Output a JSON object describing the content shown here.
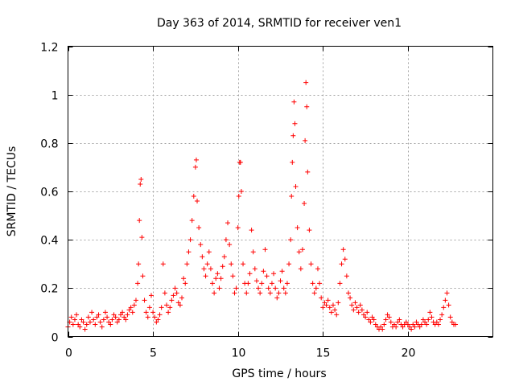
{
  "chart_data": {
    "type": "scatter",
    "title": "Day 363 of 2014, SRMTID for receiver ven1",
    "xlabel": "GPS time / hours",
    "ylabel": "SRMTID / TECUs",
    "xlim": [
      0,
      25
    ],
    "ylim": [
      0,
      1.2
    ],
    "x_ticks": [
      0,
      5,
      10,
      15,
      20
    ],
    "x_tick_labels": [
      "0",
      "5",
      "10",
      "15",
      "20"
    ],
    "y_ticks": [
      0,
      0.2,
      0.4,
      0.6,
      0.8,
      1.0,
      1.2
    ],
    "y_tick_labels": [
      "0",
      "0.2",
      "0.4",
      "0.6",
      "0.8",
      "1",
      "1.2"
    ],
    "grid": true,
    "marker": "+",
    "series": [
      {
        "name": "SRMTID",
        "color": "#ff0000",
        "points": [
          [
            0.0,
            0.04
          ],
          [
            0.1,
            0.06
          ],
          [
            0.2,
            0.08
          ],
          [
            0.3,
            0.05
          ],
          [
            0.4,
            0.07
          ],
          [
            0.5,
            0.09
          ],
          [
            0.6,
            0.05
          ],
          [
            0.7,
            0.04
          ],
          [
            0.8,
            0.07
          ],
          [
            0.9,
            0.06
          ],
          [
            1.0,
            0.03
          ],
          [
            1.1,
            0.05
          ],
          [
            1.2,
            0.08
          ],
          [
            1.3,
            0.06
          ],
          [
            1.4,
            0.1
          ],
          [
            1.5,
            0.07
          ],
          [
            1.6,
            0.05
          ],
          [
            1.7,
            0.08
          ],
          [
            1.8,
            0.09
          ],
          [
            1.9,
            0.06
          ],
          [
            2.0,
            0.04
          ],
          [
            2.1,
            0.07
          ],
          [
            2.2,
            0.1
          ],
          [
            2.3,
            0.08
          ],
          [
            2.4,
            0.06
          ],
          [
            2.5,
            0.05
          ],
          [
            2.6,
            0.07
          ],
          [
            2.7,
            0.09
          ],
          [
            2.8,
            0.08
          ],
          [
            2.9,
            0.06
          ],
          [
            3.0,
            0.07
          ],
          [
            3.1,
            0.09
          ],
          [
            3.2,
            0.1
          ],
          [
            3.3,
            0.08
          ],
          [
            3.4,
            0.07
          ],
          [
            3.5,
            0.09
          ],
          [
            3.6,
            0.11
          ],
          [
            3.7,
            0.12
          ],
          [
            3.8,
            0.1
          ],
          [
            3.9,
            0.13
          ],
          [
            4.0,
            0.15
          ],
          [
            4.1,
            0.22
          ],
          [
            4.15,
            0.3
          ],
          [
            4.2,
            0.48
          ],
          [
            4.25,
            0.63
          ],
          [
            4.3,
            0.65
          ],
          [
            4.35,
            0.41
          ],
          [
            4.4,
            0.25
          ],
          [
            4.5,
            0.15
          ],
          [
            4.6,
            0.1
          ],
          [
            4.7,
            0.08
          ],
          [
            4.8,
            0.12
          ],
          [
            4.9,
            0.17
          ],
          [
            5.0,
            0.1
          ],
          [
            5.1,
            0.08
          ],
          [
            5.2,
            0.06
          ],
          [
            5.3,
            0.07
          ],
          [
            5.4,
            0.09
          ],
          [
            5.5,
            0.12
          ],
          [
            5.6,
            0.3
          ],
          [
            5.7,
            0.18
          ],
          [
            5.8,
            0.13
          ],
          [
            5.9,
            0.1
          ],
          [
            6.0,
            0.12
          ],
          [
            6.1,
            0.15
          ],
          [
            6.2,
            0.17
          ],
          [
            6.3,
            0.2
          ],
          [
            6.4,
            0.18
          ],
          [
            6.5,
            0.14
          ],
          [
            6.6,
            0.13
          ],
          [
            6.7,
            0.16
          ],
          [
            6.8,
            0.24
          ],
          [
            6.9,
            0.22
          ],
          [
            7.0,
            0.3
          ],
          [
            7.1,
            0.35
          ],
          [
            7.2,
            0.4
          ],
          [
            7.3,
            0.48
          ],
          [
            7.4,
            0.58
          ],
          [
            7.5,
            0.7
          ],
          [
            7.55,
            0.73
          ],
          [
            7.6,
            0.56
          ],
          [
            7.7,
            0.45
          ],
          [
            7.8,
            0.38
          ],
          [
            7.9,
            0.33
          ],
          [
            8.0,
            0.28
          ],
          [
            8.1,
            0.25
          ],
          [
            8.2,
            0.3
          ],
          [
            8.3,
            0.35
          ],
          [
            8.4,
            0.28
          ],
          [
            8.5,
            0.22
          ],
          [
            8.6,
            0.18
          ],
          [
            8.7,
            0.24
          ],
          [
            8.8,
            0.26
          ],
          [
            8.9,
            0.2
          ],
          [
            9.0,
            0.24
          ],
          [
            9.1,
            0.29
          ],
          [
            9.2,
            0.33
          ],
          [
            9.3,
            0.4
          ],
          [
            9.4,
            0.47
          ],
          [
            9.5,
            0.38
          ],
          [
            9.6,
            0.3
          ],
          [
            9.7,
            0.25
          ],
          [
            9.8,
            0.18
          ],
          [
            9.9,
            0.2
          ],
          [
            10.0,
            0.45
          ],
          [
            10.05,
            0.58
          ],
          [
            10.1,
            0.72
          ],
          [
            10.15,
            0.72
          ],
          [
            10.2,
            0.6
          ],
          [
            10.3,
            0.3
          ],
          [
            10.4,
            0.22
          ],
          [
            10.5,
            0.18
          ],
          [
            10.6,
            0.22
          ],
          [
            10.7,
            0.26
          ],
          [
            10.8,
            0.44
          ],
          [
            10.9,
            0.35
          ],
          [
            11.0,
            0.28
          ],
          [
            11.1,
            0.23
          ],
          [
            11.2,
            0.2
          ],
          [
            11.3,
            0.18
          ],
          [
            11.4,
            0.22
          ],
          [
            11.5,
            0.27
          ],
          [
            11.6,
            0.36
          ],
          [
            11.7,
            0.25
          ],
          [
            11.8,
            0.2
          ],
          [
            11.9,
            0.18
          ],
          [
            12.0,
            0.22
          ],
          [
            12.1,
            0.26
          ],
          [
            12.2,
            0.2
          ],
          [
            12.3,
            0.16
          ],
          [
            12.4,
            0.18
          ],
          [
            12.5,
            0.23
          ],
          [
            12.6,
            0.27
          ],
          [
            12.7,
            0.2
          ],
          [
            12.8,
            0.18
          ],
          [
            12.9,
            0.22
          ],
          [
            13.0,
            0.3
          ],
          [
            13.1,
            0.4
          ],
          [
            13.15,
            0.58
          ],
          [
            13.2,
            0.72
          ],
          [
            13.25,
            0.83
          ],
          [
            13.3,
            0.97
          ],
          [
            13.35,
            0.88
          ],
          [
            13.4,
            0.62
          ],
          [
            13.5,
            0.45
          ],
          [
            13.6,
            0.35
          ],
          [
            13.7,
            0.28
          ],
          [
            13.8,
            0.36
          ],
          [
            13.9,
            0.55
          ],
          [
            13.95,
            0.81
          ],
          [
            14.0,
            1.05
          ],
          [
            14.05,
            0.95
          ],
          [
            14.1,
            0.68
          ],
          [
            14.2,
            0.44
          ],
          [
            14.3,
            0.3
          ],
          [
            14.4,
            0.22
          ],
          [
            14.5,
            0.18
          ],
          [
            14.6,
            0.2
          ],
          [
            14.7,
            0.28
          ],
          [
            14.8,
            0.22
          ],
          [
            14.9,
            0.16
          ],
          [
            15.0,
            0.12
          ],
          [
            15.1,
            0.14
          ],
          [
            15.2,
            0.13
          ],
          [
            15.3,
            0.15
          ],
          [
            15.4,
            0.12
          ],
          [
            15.5,
            0.1
          ],
          [
            15.6,
            0.13
          ],
          [
            15.7,
            0.11
          ],
          [
            15.8,
            0.09
          ],
          [
            15.9,
            0.14
          ],
          [
            16.0,
            0.22
          ],
          [
            16.1,
            0.3
          ],
          [
            16.2,
            0.36
          ],
          [
            16.3,
            0.32
          ],
          [
            16.4,
            0.25
          ],
          [
            16.5,
            0.18
          ],
          [
            16.6,
            0.16
          ],
          [
            16.7,
            0.13
          ],
          [
            16.8,
            0.11
          ],
          [
            16.9,
            0.14
          ],
          [
            17.0,
            0.12
          ],
          [
            17.1,
            0.1
          ],
          [
            17.2,
            0.13
          ],
          [
            17.3,
            0.11
          ],
          [
            17.4,
            0.09
          ],
          [
            17.5,
            0.08
          ],
          [
            17.6,
            0.1
          ],
          [
            17.7,
            0.07
          ],
          [
            17.8,
            0.06
          ],
          [
            17.9,
            0.08
          ],
          [
            18.0,
            0.07
          ],
          [
            18.1,
            0.05
          ],
          [
            18.2,
            0.04
          ],
          [
            18.3,
            0.03
          ],
          [
            18.4,
            0.04
          ],
          [
            18.5,
            0.03
          ],
          [
            18.6,
            0.05
          ],
          [
            18.7,
            0.07
          ],
          [
            18.8,
            0.09
          ],
          [
            18.9,
            0.08
          ],
          [
            19.0,
            0.06
          ],
          [
            19.1,
            0.04
          ],
          [
            19.2,
            0.05
          ],
          [
            19.3,
            0.04
          ],
          [
            19.4,
            0.06
          ],
          [
            19.5,
            0.07
          ],
          [
            19.6,
            0.05
          ],
          [
            19.7,
            0.04
          ],
          [
            19.8,
            0.05
          ],
          [
            19.9,
            0.06
          ],
          [
            20.0,
            0.05
          ],
          [
            20.1,
            0.04
          ],
          [
            20.2,
            0.03
          ],
          [
            20.3,
            0.05
          ],
          [
            20.4,
            0.04
          ],
          [
            20.5,
            0.06
          ],
          [
            20.6,
            0.05
          ],
          [
            20.7,
            0.04
          ],
          [
            20.8,
            0.05
          ],
          [
            20.9,
            0.07
          ],
          [
            21.0,
            0.06
          ],
          [
            21.1,
            0.05
          ],
          [
            21.2,
            0.07
          ],
          [
            21.3,
            0.1
          ],
          [
            21.4,
            0.08
          ],
          [
            21.5,
            0.06
          ],
          [
            21.6,
            0.05
          ],
          [
            21.7,
            0.06
          ],
          [
            21.8,
            0.05
          ],
          [
            21.9,
            0.07
          ],
          [
            22.0,
            0.09
          ],
          [
            22.1,
            0.12
          ],
          [
            22.2,
            0.15
          ],
          [
            22.3,
            0.18
          ],
          [
            22.4,
            0.13
          ],
          [
            22.5,
            0.08
          ],
          [
            22.6,
            0.06
          ],
          [
            22.7,
            0.05
          ],
          [
            22.8,
            0.05
          ]
        ]
      }
    ]
  }
}
